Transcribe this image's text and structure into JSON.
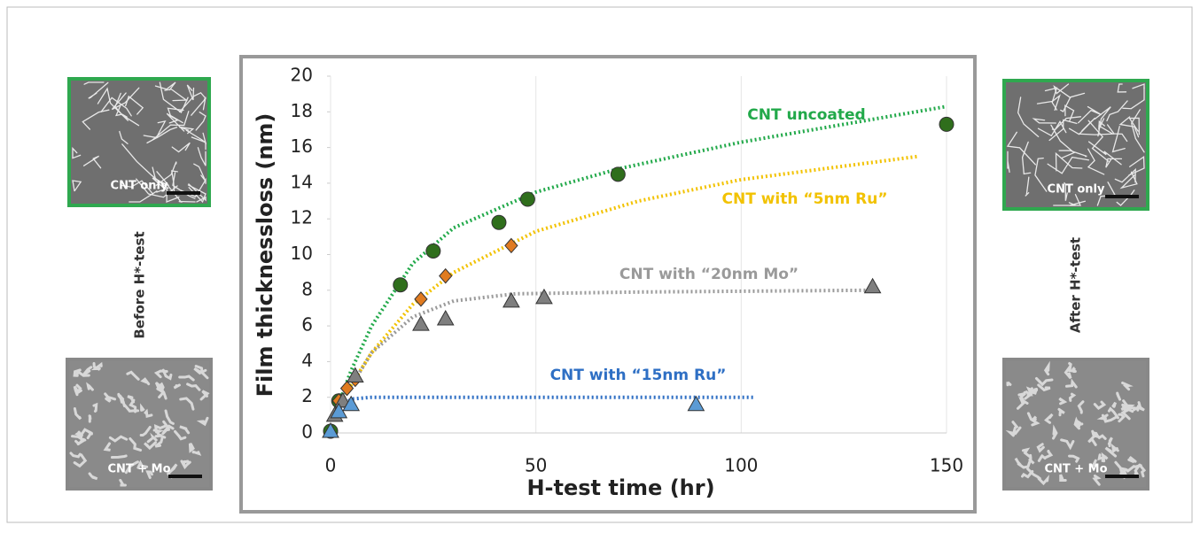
{
  "chart_data": {
    "type": "scatter",
    "x_label": "H-test time (hr)",
    "y_label": "Film thicknessloss (nm)",
    "xlim": [
      0,
      150
    ],
    "xticks": [
      0,
      50,
      100,
      150
    ],
    "ylim": [
      0,
      20
    ],
    "yticks": [
      0,
      2,
      4,
      6,
      8,
      10,
      12,
      14,
      16,
      18,
      20
    ],
    "grid_x": true,
    "series": [
      {
        "name": "CNT uncoated",
        "color": "#2f6e1c",
        "marker": "circle",
        "x": [
          0,
          2,
          17,
          25,
          41,
          48,
          70,
          150
        ],
        "values": [
          0.1,
          1.8,
          8.3,
          10.2,
          11.8,
          13.1,
          14.5,
          17.3
        ],
        "trend": {
          "color": "#22a94a",
          "x": [
            1,
            5,
            10,
            20,
            30,
            50,
            70,
            100,
            150
          ],
          "values": [
            1,
            3.5,
            6,
            9.5,
            11.5,
            13.5,
            14.8,
            16.3,
            18.3
          ]
        }
      },
      {
        "name": "CNT with “5nm Ru”",
        "color": "#e07b20",
        "marker": "diamond",
        "x": [
          2,
          4,
          6,
          22,
          28,
          44
        ],
        "values": [
          1.8,
          2.5,
          3,
          7.5,
          8.8,
          10.5
        ],
        "trend": {
          "color": "#f2c200",
          "x": [
            2,
            10,
            20,
            30,
            50,
            75,
            100,
            143
          ],
          "values": [
            1.6,
            4.5,
            7.2,
            9,
            11.3,
            13,
            14.2,
            15.5
          ]
        }
      },
      {
        "name": "CNT with “20nm Mo”",
        "color": "#7f7f7f",
        "marker": "triangle",
        "x": [
          1,
          3,
          6,
          22,
          28,
          44,
          52,
          132
        ],
        "values": [
          1,
          1.8,
          3.2,
          6.1,
          6.4,
          7.4,
          7.6,
          8.2
        ],
        "trend": {
          "color": "#9a9a9a",
          "x": [
            2,
            10,
            20,
            30,
            45,
            75,
            132
          ],
          "values": [
            1.5,
            4.5,
            6.5,
            7.4,
            7.8,
            7.9,
            8
          ]
        }
      },
      {
        "name": "CNT with “15nm Ru”",
        "color": "#5b9bd5",
        "marker": "triangle",
        "x": [
          0,
          2,
          5,
          89
        ],
        "values": [
          0.1,
          1.2,
          1.6,
          1.6
        ],
        "trend": {
          "color": "#2e6fc4",
          "x": [
            2,
            5,
            10,
            103
          ],
          "values": [
            1.3,
            1.9,
            2,
            2
          ]
        }
      }
    ]
  },
  "panels": [
    {
      "label": "Before H*-test",
      "images": [
        "CNT only",
        "CNT + Mo"
      ]
    },
    {
      "label": "After H*-test",
      "images": [
        "CNT only",
        "CNT + Mo"
      ]
    }
  ]
}
